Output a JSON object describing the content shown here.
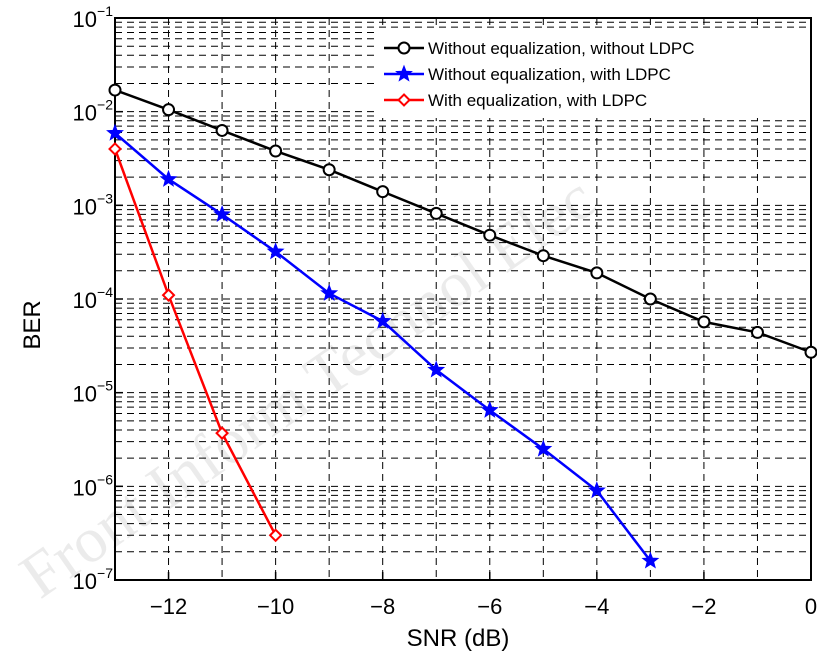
{
  "watermark": "Front Inform Technol Elec",
  "chart_data": {
    "type": "line",
    "xlabel": "SNR (dB)",
    "ylabel": "BER",
    "xlim": [
      -13,
      0
    ],
    "ylim": [
      1e-07,
      0.1
    ],
    "yscale": "log",
    "grid": true,
    "legend_position": "top-right",
    "xticks": [
      -12,
      -10,
      -8,
      -6,
      -4,
      -2,
      0
    ],
    "xtick_labels": [
      "−12",
      "−10",
      "−8",
      "−6",
      "−4",
      "−2",
      "0"
    ],
    "yticks": [
      {
        "base": "10",
        "exp": "−1"
      },
      {
        "base": "10",
        "exp": "−2"
      },
      {
        "base": "10",
        "exp": "−3"
      },
      {
        "base": "10",
        "exp": "−4"
      },
      {
        "base": "10",
        "exp": "−5"
      },
      {
        "base": "10",
        "exp": "−6"
      },
      {
        "base": "10",
        "exp": "−7"
      }
    ],
    "series": [
      {
        "name": "Without equalization, without LDPC",
        "color": "#000000",
        "marker": "circle",
        "x": [
          -13,
          -12,
          -11,
          -10,
          -9,
          -8,
          -7,
          -6,
          -5,
          -4,
          -3,
          -2,
          -1,
          0
        ],
        "y": [
          0.017,
          0.0105,
          0.0063,
          0.0038,
          0.0024,
          0.0014,
          0.00082,
          0.00048,
          0.00029,
          0.00019,
          0.0001,
          5.7e-05,
          4.4e-05,
          2.7e-05
        ]
      },
      {
        "name": "Without equalization, with LDPC",
        "color": "#0000ff",
        "marker": "star",
        "x": [
          -13,
          -12,
          -11,
          -10,
          -9,
          -8,
          -7,
          -6,
          -5,
          -4,
          -3
        ],
        "y": [
          0.0059,
          0.0019,
          0.0008,
          0.00032,
          0.000115,
          5.8e-05,
          1.75e-05,
          6.5e-06,
          2.5e-06,
          9e-07,
          1.6e-07
        ]
      },
      {
        "name": "With equalization, with LDPC",
        "color": "#ff0000",
        "marker": "diamond",
        "x": [
          -13,
          -12,
          -11,
          -10
        ],
        "y": [
          0.004,
          0.00011,
          3.7e-06,
          3e-07
        ]
      }
    ]
  }
}
